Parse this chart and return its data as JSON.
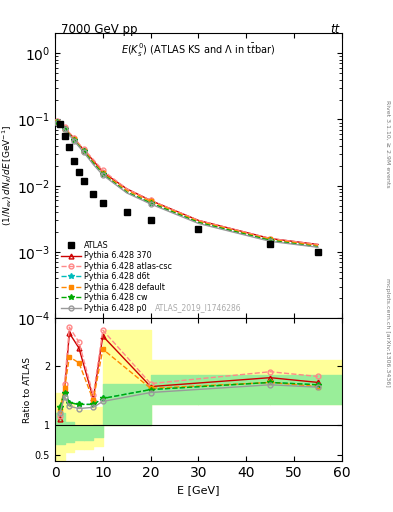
{
  "title_top": "7000 GeV pp",
  "title_top_right": "tt",
  "panel_title": "E(K$_s^0$) (ATLAS KS and $\\Lambda$ in t$\\bar{t}$bar)",
  "watermark": "ATLAS_2019_I1746286",
  "right_label_top": "Rivet 3.1.10, ≥ 2.9M events",
  "right_label_bottom": "mcplots.cern.ch [arXiv:1306.3436]",
  "xlabel": "E [GeV]",
  "ylabel_top": "$(1/N_{ev})\\,dN_K/dE\\,[\\mathrm{GeV}^{-1}]$",
  "ylabel_bottom": "Ratio to ATLAS",
  "xlim": [
    0,
    60
  ],
  "atlas_data_x": [
    1,
    2,
    3,
    4,
    5,
    6,
    8,
    10,
    15,
    20,
    30,
    45,
    55
  ],
  "atlas_data_y": [
    0.085,
    0.057,
    0.038,
    0.024,
    0.016,
    0.012,
    0.0075,
    0.0055,
    0.004,
    0.003,
    0.0022,
    0.0013,
    0.001
  ],
  "mc_x": [
    0.5,
    1,
    2,
    3,
    4,
    5,
    6,
    8,
    10,
    15,
    20,
    30,
    45,
    55
  ],
  "py370_y": [
    0.095,
    0.092,
    0.075,
    0.062,
    0.052,
    0.042,
    0.035,
    0.024,
    0.016,
    0.009,
    0.006,
    0.003,
    0.0016,
    0.0013
  ],
  "pyatlas_y": [
    0.096,
    0.093,
    0.076,
    0.063,
    0.053,
    0.043,
    0.036,
    0.025,
    0.017,
    0.009,
    0.006,
    0.003,
    0.0016,
    0.0013
  ],
  "pyd6t_y": [
    0.091,
    0.089,
    0.072,
    0.059,
    0.049,
    0.04,
    0.033,
    0.022,
    0.015,
    0.008,
    0.0055,
    0.0028,
    0.0015,
    0.0012
  ],
  "pydef_y": [
    0.092,
    0.09,
    0.073,
    0.06,
    0.05,
    0.041,
    0.034,
    0.023,
    0.0155,
    0.0085,
    0.0058,
    0.0029,
    0.00155,
    0.00125
  ],
  "pycw_y": [
    0.091,
    0.089,
    0.072,
    0.059,
    0.049,
    0.04,
    0.033,
    0.022,
    0.015,
    0.008,
    0.0055,
    0.0028,
    0.0015,
    0.0012
  ],
  "pyp0_y": [
    0.09,
    0.088,
    0.071,
    0.058,
    0.048,
    0.039,
    0.032,
    0.021,
    0.0145,
    0.0078,
    0.0053,
    0.0027,
    0.00145,
    0.00118
  ],
  "bin_edges": [
    0,
    2,
    4,
    6,
    8,
    10,
    20,
    30,
    45,
    60
  ],
  "yellow_upper": [
    1.55,
    1.35,
    1.25,
    1.25,
    1.3,
    2.6,
    2.1,
    2.1,
    2.1
  ],
  "yellow_lower": [
    0.42,
    0.55,
    0.6,
    0.6,
    0.65,
    1.0,
    1.35,
    1.35,
    1.35
  ],
  "green_upper": [
    1.2,
    1.05,
    0.98,
    0.98,
    1.0,
    1.7,
    1.85,
    1.85,
    1.85
  ],
  "green_lower": [
    0.68,
    0.72,
    0.75,
    0.75,
    0.8,
    1.0,
    1.35,
    1.35,
    1.35
  ],
  "ratio_x": [
    1,
    2,
    3,
    5,
    8,
    10,
    20,
    45,
    55
  ],
  "ratio_370": [
    1.1,
    1.6,
    2.55,
    2.3,
    1.45,
    2.5,
    1.65,
    1.8,
    1.72
  ],
  "ratio_atlas_csc": [
    1.15,
    1.7,
    2.65,
    2.4,
    1.5,
    2.6,
    1.7,
    1.9,
    1.82
  ],
  "ratio_d6t": [
    1.3,
    1.55,
    1.38,
    1.35,
    1.35,
    1.45,
    1.6,
    1.72,
    1.68
  ],
  "ratio_default": [
    1.25,
    1.62,
    2.15,
    2.05,
    1.42,
    2.28,
    1.62,
    1.72,
    1.65
  ],
  "ratio_cw": [
    1.3,
    1.55,
    1.38,
    1.35,
    1.35,
    1.45,
    1.6,
    1.72,
    1.68
  ],
  "ratio_p0": [
    1.2,
    1.48,
    1.32,
    1.28,
    1.3,
    1.4,
    1.55,
    1.68,
    1.64
  ],
  "color_370": "#cc0000",
  "color_atlas_csc": "#ff8888",
  "color_d6t": "#00bbbb",
  "color_default": "#ff8800",
  "color_cw": "#00aa00",
  "color_p0": "#999999",
  "bg_color": "#ffffff"
}
